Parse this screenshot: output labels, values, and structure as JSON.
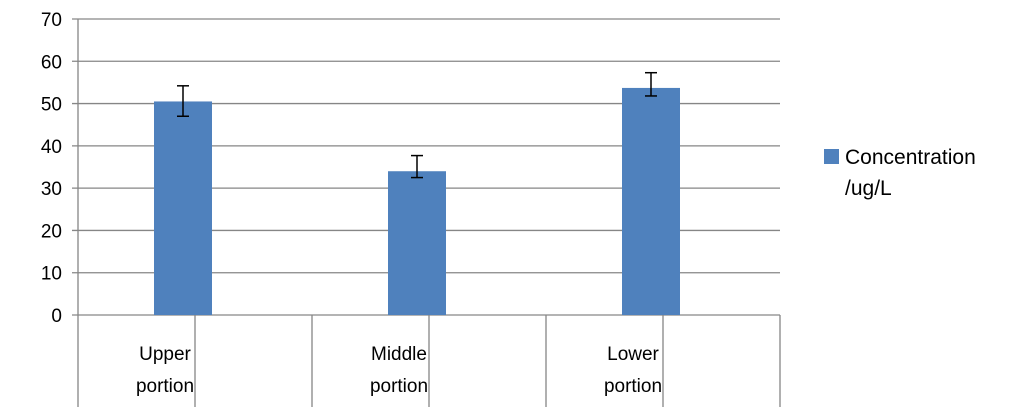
{
  "chart_data": {
    "type": "bar",
    "categories": [
      [
        "Upper",
        "portion"
      ],
      [
        "Middle",
        "portion"
      ],
      [
        "Lower",
        "portion"
      ]
    ],
    "series": [
      {
        "name": "Concentration /ug/L",
        "name_lines": [
          "Concentration",
          "/ug/L"
        ],
        "color": "#4F81BD",
        "values": [
          50.5,
          34,
          53.7
        ],
        "error_low": [
          47,
          32.5,
          51.8
        ],
        "error_high": [
          54.2,
          37.7,
          57.3
        ]
      }
    ],
    "yticks": [
      "0",
      "10",
      "20",
      "30",
      "40",
      "50",
      "60",
      "70"
    ],
    "ylim": [
      0,
      70
    ],
    "grid": true,
    "legend_position": "right",
    "title": "",
    "xlabel": "",
    "ylabel": ""
  }
}
